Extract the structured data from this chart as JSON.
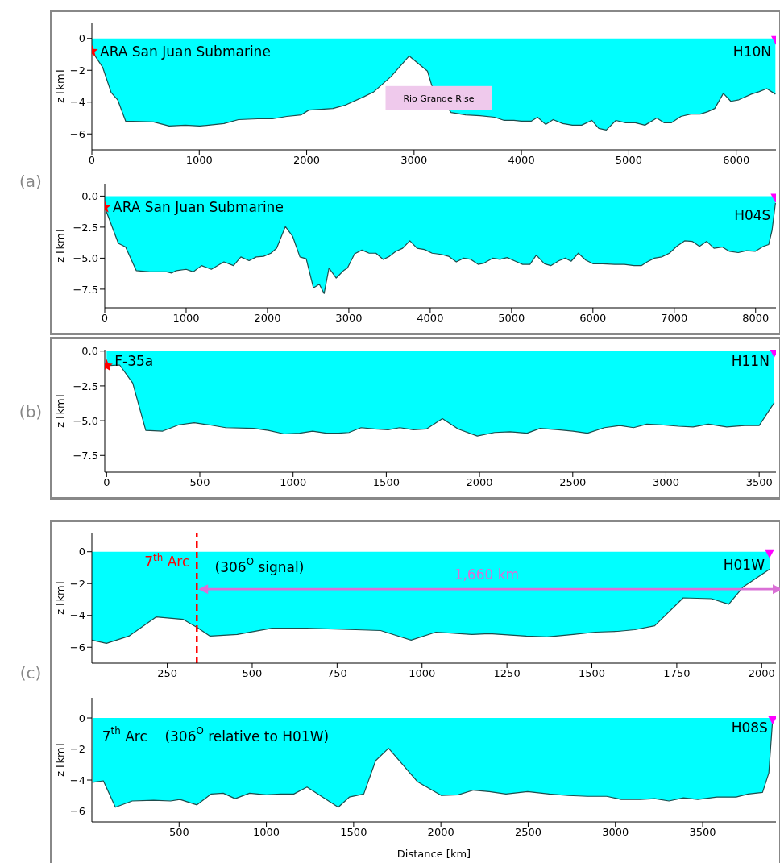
{
  "chart_data": [
    {
      "type": "area",
      "ylabel": "z [km]",
      "xlim": [
        0,
        6370
      ],
      "ylim": [
        -7,
        1
      ],
      "xticks": [
        0,
        1000,
        2000,
        3000,
        4000,
        5000,
        6000
      ],
      "yticks": [
        {
          "value": -6,
          "label": "−6"
        },
        {
          "value": -4,
          "label": "−4"
        },
        {
          "value": -2,
          "label": "−2"
        },
        {
          "value": 0,
          "label": "0"
        }
      ],
      "series": [
        {
          "color": "#00ffff",
          "x": [
            0,
            100,
            180,
            240,
            315,
            575,
            720,
            870,
            1005,
            1230,
            1365,
            1545,
            1680,
            1815,
            1950,
            2020,
            2245,
            2355,
            2535,
            2625,
            2785,
            2955,
            3125,
            3165,
            3345,
            3480,
            3615,
            3750,
            3840,
            3930,
            4000,
            4090,
            4150,
            4225,
            4295,
            4385,
            4475,
            4560,
            4655,
            4720,
            4790,
            4880,
            4970,
            5060,
            5150,
            5260,
            5330,
            5395,
            5485,
            5575,
            5665,
            5735,
            5800,
            5880,
            5950,
            6025,
            6140,
            6210,
            6285,
            6365
          ],
          "values": [
            -0.8,
            -1.8,
            -3.4,
            -3.85,
            -5.2,
            -5.25,
            -5.5,
            -5.45,
            -5.5,
            -5.35,
            -5.1,
            -5.05,
            -5.05,
            -4.9,
            -4.8,
            -4.5,
            -4.4,
            -4.2,
            -3.65,
            -3.35,
            -2.4,
            -1.1,
            -2.05,
            -2.95,
            -4.65,
            -4.8,
            -4.85,
            -4.95,
            -5.15,
            -5.15,
            -5.2,
            -5.2,
            -4.95,
            -5.4,
            -5.1,
            -5.35,
            -5.45,
            -5.45,
            -5.15,
            -5.65,
            -5.75,
            -5.15,
            -5.3,
            -5.3,
            -5.45,
            -5.0,
            -5.3,
            -5.3,
            -4.9,
            -4.75,
            -4.75,
            -4.6,
            -4.4,
            -3.45,
            -3.95,
            -3.85,
            -3.5,
            -3.35,
            -3.15,
            -3.5
          ]
        },
        {
          "type": "scatter",
          "marker": "star",
          "color": "#ff0000",
          "x": [
            0
          ],
          "values": [
            -0.8
          ]
        },
        {
          "type": "scatter",
          "marker": "triangle",
          "color": "#ff00ff",
          "x": [
            6370
          ],
          "values": [
            0
          ]
        }
      ],
      "annotations": [
        {
          "text": "ARA San Juan Submarine",
          "x": 0,
          "y": -0.8
        },
        {
          "text": "H10N",
          "x": 6370,
          "y": -0.8
        },
        {
          "text": "Rio Grande Rise",
          "x": 3230,
          "y": -3.75
        },
        "(a)"
      ]
    },
    {
      "type": "area",
      "ylabel": "z [km]",
      "xlim": [
        0,
        8250
      ],
      "ylim": [
        -9,
        1
      ],
      "xticks": [
        0,
        1000,
        2000,
        3000,
        4000,
        5000,
        6000,
        7000,
        8000
      ],
      "yticks": [
        {
          "value": -7.5,
          "label": "−7.5"
        },
        {
          "value": -5,
          "label": "−5.0"
        },
        {
          "value": -2.5,
          "label": "−2.5"
        },
        {
          "value": 0,
          "label": "0.0"
        }
      ],
      "series": [
        {
          "color": "#00ffff",
          "x": [
            0,
            167,
            256,
            387,
            554,
            762,
            821,
            881,
            1000,
            1089,
            1190,
            1310,
            1464,
            1583,
            1673,
            1774,
            1863,
            1952,
            2042,
            2113,
            2220,
            2310,
            2399,
            2476,
            2565,
            2637,
            2696,
            2756,
            2845,
            2935,
            2982,
            3071,
            3161,
            3250,
            3333,
            3423,
            3500,
            3577,
            3661,
            3750,
            3839,
            3929,
            4024,
            4137,
            4226,
            4321,
            4411,
            4500,
            4589,
            4661,
            4768,
            4857,
            4946,
            5048,
            5137,
            5226,
            5304,
            5405,
            5482,
            5583,
            5661,
            5732,
            5821,
            5911,
            6000,
            6119,
            6268,
            6387,
            6506,
            6595,
            6667,
            6756,
            6845,
            6940,
            7030,
            7131,
            7220,
            7310,
            7399,
            7488,
            7589,
            7679,
            7786,
            7887,
            7994,
            8095,
            8161,
            8202,
            8244
          ],
          "values": [
            -0.9,
            -3.8,
            -4.1,
            -6.0,
            -6.1,
            -6.1,
            -6.2,
            -6.0,
            -5.9,
            -6.1,
            -5.6,
            -5.9,
            -5.3,
            -5.6,
            -4.9,
            -5.2,
            -4.9,
            -4.85,
            -4.6,
            -4.2,
            -2.45,
            -3.25,
            -4.9,
            -5.05,
            -7.4,
            -7.1,
            -7.85,
            -5.8,
            -6.6,
            -6.0,
            -5.8,
            -4.65,
            -4.35,
            -4.6,
            -4.6,
            -5.1,
            -4.85,
            -4.45,
            -4.2,
            -3.6,
            -4.2,
            -4.3,
            -4.6,
            -4.7,
            -4.85,
            -5.3,
            -5.0,
            -5.1,
            -5.5,
            -5.4,
            -5.0,
            -5.1,
            -4.95,
            -5.25,
            -5.5,
            -5.5,
            -4.75,
            -5.45,
            -5.6,
            -5.2,
            -5.0,
            -5.25,
            -4.6,
            -5.15,
            -5.45,
            -5.45,
            -5.5,
            -5.5,
            -5.6,
            -5.6,
            -5.3,
            -5.0,
            -4.9,
            -4.6,
            -4.05,
            -3.6,
            -3.65,
            -4.05,
            -3.65,
            -4.2,
            -4.1,
            -4.45,
            -4.55,
            -4.4,
            -4.45,
            -4.05,
            -3.9,
            -2.75,
            -0.55
          ]
        },
        {
          "type": "scatter",
          "marker": "star",
          "color": "#ff0000",
          "x": [
            0
          ],
          "values": [
            -0.9
          ]
        },
        {
          "type": "scatter",
          "marker": "triangle",
          "color": "#ff00ff",
          "x": [
            8244
          ],
          "values": [
            0
          ]
        }
      ],
      "annotations": [
        {
          "text": "ARA San Juan Submarine",
          "x": 0,
          "y": -0.9
        },
        {
          "text": "H04S",
          "x": 8244,
          "y": -1.5
        }
      ]
    },
    {
      "type": "area",
      "ylabel": "z [km]",
      "xlim": [
        -10,
        3590
      ],
      "ylim": [
        -8.7,
        0.1
      ],
      "xticks": [
        0,
        500,
        1000,
        1500,
        2000,
        2500,
        3000,
        3500
      ],
      "yticks": [
        {
          "value": -7.5,
          "label": "−7.5"
        },
        {
          "value": -5,
          "label": "−5.0"
        },
        {
          "value": -2.5,
          "label": "−2.5"
        },
        {
          "value": 0,
          "label": "0.0"
        }
      ],
      "series": [
        {
          "color": "#00ffff",
          "x": [
            0,
            70,
            140,
            210,
            301,
            387,
            470,
            550,
            638,
            789,
            867,
            952,
            1035,
            1105,
            1178,
            1243,
            1300,
            1365,
            1437,
            1510,
            1572,
            1645,
            1715,
            1801,
            1886,
            1988,
            2081,
            2164,
            2255,
            2325,
            2423,
            2501,
            2579,
            2670,
            2753,
            2826,
            2898,
            2974,
            3067,
            3145,
            3228,
            3326,
            3422,
            3500,
            3581
          ],
          "values": [
            -1.05,
            -1.0,
            -2.3,
            -5.7,
            -5.75,
            -5.3,
            -5.15,
            -5.3,
            -5.5,
            -5.55,
            -5.7,
            -5.95,
            -5.9,
            -5.75,
            -5.9,
            -5.9,
            -5.85,
            -5.5,
            -5.6,
            -5.65,
            -5.5,
            -5.65,
            -5.6,
            -4.85,
            -5.6,
            -6.1,
            -5.85,
            -5.8,
            -5.9,
            -5.55,
            -5.65,
            -5.75,
            -5.9,
            -5.5,
            -5.35,
            -5.5,
            -5.25,
            -5.3,
            -5.4,
            -5.45,
            -5.25,
            -5.45,
            -5.35,
            -5.35,
            -3.7
          ]
        },
        {
          "type": "scatter",
          "marker": "star",
          "color": "#ff0000",
          "x": [
            0
          ],
          "values": [
            -1.05
          ]
        },
        {
          "type": "scatter",
          "marker": "triangle",
          "color": "#ff00ff",
          "x": [
            3581
          ],
          "values": [
            0
          ]
        }
      ],
      "annotations": [
        {
          "text": "F-35a",
          "x": 0,
          "y": -0.7
        },
        {
          "text": "H11N",
          "x": 3581,
          "y": -0.7
        },
        "(b)"
      ]
    },
    {
      "type": "area",
      "ylabel": "z [km]",
      "xlim": [
        28,
        2042
      ],
      "ylim": [
        -7,
        1.2
      ],
      "xticks": [
        250,
        500,
        750,
        1000,
        1250,
        1500,
        1750,
        2000
      ],
      "yticks": [
        {
          "value": -6,
          "label": "−6"
        },
        {
          "value": -4,
          "label": "−4"
        },
        {
          "value": -2,
          "label": "−2"
        },
        {
          "value": 0,
          "label": "0"
        }
      ],
      "series": [
        {
          "color": "#00ffff",
          "x": [
            28,
            71,
            137,
            217,
            297,
            337,
            376,
            456,
            558,
            660,
            805,
            878,
            968,
            1041,
            1147,
            1198,
            1307,
            1368,
            1445,
            1510,
            1576,
            1626,
            1685,
            1769,
            1852,
            1903,
            1946,
            2023
          ],
          "values": [
            -5.55,
            -5.75,
            -5.3,
            -4.1,
            -4.25,
            -4.75,
            -5.3,
            -5.2,
            -4.8,
            -4.8,
            -4.9,
            -4.95,
            -5.55,
            -5.05,
            -5.2,
            -5.15,
            -5.3,
            -5.35,
            -5.2,
            -5.05,
            -5.0,
            -4.9,
            -4.65,
            -2.9,
            -2.95,
            -3.3,
            -2.2,
            -1.1
          ]
        },
        {
          "type": "scatter",
          "marker": "triangle",
          "color": "#ff00ff",
          "x": [
            2023
          ],
          "values": [
            0
          ]
        }
      ],
      "ref_lines": [
        {
          "axis": "x",
          "value": 337,
          "label": "7$^{th}$ Arc",
          "color": "#ff0000",
          "line_style": "dashed"
        }
      ],
      "annotations": [
        "(306$^{O}$ signal)",
        {
          "text": "H01W",
          "x": 2023,
          "y": -0.8
        },
        "1,660 km",
        "(c)"
      ]
    },
    {
      "type": "area",
      "xlabel": "Distance [km]",
      "ylabel": "z [km]",
      "xlim": [
        0,
        3920
      ],
      "ylim": [
        -6.7,
        1.3
      ],
      "xticks": [
        500,
        1000,
        1500,
        2000,
        2500,
        3000,
        3500
      ],
      "yticks": [
        {
          "value": -6,
          "label": "−6"
        },
        {
          "value": -4,
          "label": "−4"
        },
        {
          "value": -2,
          "label": "−2"
        },
        {
          "value": 0,
          "label": "0"
        }
      ],
      "series": [
        {
          "color": "#00ffff",
          "x": [
            3,
            66,
            135,
            231,
            354,
            451,
            505,
            602,
            684,
            753,
            821,
            904,
            1000,
            1082,
            1157,
            1233,
            1412,
            1475,
            1558,
            1626,
            1700,
            1788,
            1865,
            2003,
            2099,
            2187,
            2277,
            2373,
            2497,
            2621,
            2731,
            2840,
            2950,
            3033,
            3143,
            3225,
            3307,
            3390,
            3472,
            3582,
            3692,
            3761,
            3843,
            3879,
            3901
          ],
          "values": [
            -4.15,
            -4.05,
            -5.75,
            -5.35,
            -5.3,
            -5.35,
            -5.25,
            -5.6,
            -4.9,
            -4.85,
            -5.2,
            -4.85,
            -4.95,
            -4.9,
            -4.9,
            -4.45,
            -5.75,
            -5.1,
            -4.9,
            -2.75,
            -1.95,
            -3.1,
            -4.1,
            -5.0,
            -4.95,
            -4.65,
            -4.75,
            -4.9,
            -4.75,
            -4.9,
            -5.0,
            -5.05,
            -5.05,
            -5.25,
            -5.25,
            -5.2,
            -5.35,
            -5.15,
            -5.25,
            -5.1,
            -5.1,
            -4.9,
            -4.8,
            -3.55,
            -0.1
          ]
        },
        {
          "type": "scatter",
          "marker": "triangle",
          "color": "#ff00ff",
          "x": [
            3901
          ],
          "values": [
            0
          ]
        }
      ],
      "annotations": [
        "7$^{th}$ Arc    (306$^{O}$ relative to H01W)",
        {
          "text": "H08S",
          "x": 3901,
          "y": -0.6
        }
      ]
    }
  ]
}
